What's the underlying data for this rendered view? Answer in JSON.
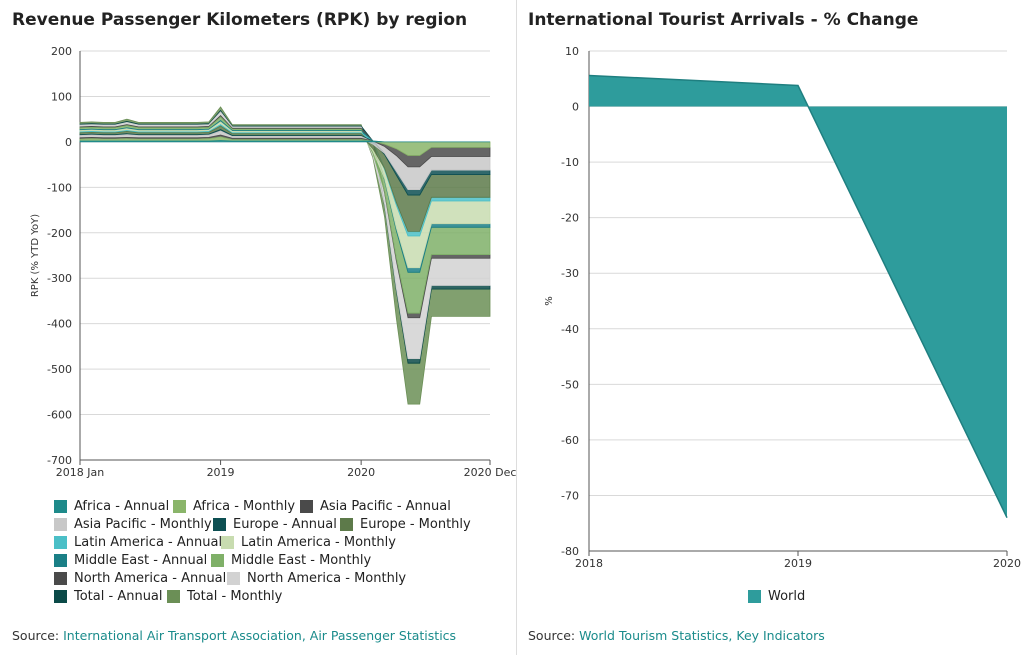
{
  "left": {
    "title": "Revenue Passenger Kilometers (RPK) by region",
    "source_prefix": "Source: ",
    "source_link": "International Air Transport Association, Air Passenger Statistics"
  },
  "right": {
    "title": "International Tourist Arrivals - % Change",
    "source_prefix": "Source: ",
    "source_link": "World Tourism Statistics, Key Indicators"
  },
  "chart_data": [
    {
      "type": "area",
      "title": "Revenue Passenger Kilometers (RPK) by region",
      "ylabel": "RPK (% YTD YoY)",
      "xlabel": "",
      "ylim": [
        -700,
        200
      ],
      "yticks": [
        200,
        100,
        0,
        -100,
        -200,
        -300,
        -400,
        -500,
        -600,
        -700
      ],
      "x_tick_labels": [
        "2018 Jan",
        "2019",
        "2020",
        "2020 Dec"
      ],
      "x_tick_index": [
        0,
        12,
        24,
        35
      ],
      "grid": true,
      "legend_position": "bottom",
      "stacked": true,
      "series": [
        {
          "name": "Africa - Annual",
          "color": "#1e8a8a",
          "values": [
            2,
            2,
            2,
            2,
            2,
            2,
            2,
            2,
            2,
            2,
            2,
            2,
            3,
            2,
            2,
            2,
            2,
            2,
            2,
            2,
            2,
            2,
            2,
            2,
            2,
            2,
            0,
            0,
            0,
            0,
            0,
            0,
            0,
            0,
            0,
            0
          ]
        },
        {
          "name": "Africa - Monthly",
          "color": "#8ab56a",
          "values": [
            4,
            5,
            4,
            4,
            5,
            4,
            4,
            4,
            4,
            4,
            4,
            5,
            8,
            3,
            3,
            3,
            3,
            3,
            3,
            3,
            3,
            3,
            3,
            3,
            3,
            0,
            -5,
            -15,
            -30,
            -30,
            -12,
            -12,
            -12,
            -12,
            -12,
            -12
          ]
        },
        {
          "name": "Asia Pacific - Annual",
          "color": "#4a4a4a",
          "values": [
            3,
            3,
            3,
            3,
            3,
            3,
            3,
            3,
            3,
            3,
            3,
            3,
            4,
            3,
            3,
            3,
            3,
            3,
            3,
            3,
            3,
            3,
            3,
            3,
            3,
            0,
            -5,
            -15,
            -25,
            -25,
            -20,
            -20,
            -20,
            -20,
            -20,
            -20
          ]
        },
        {
          "name": "Asia Pacific - Monthly",
          "color": "#c8c8c8",
          "values": [
            5,
            5,
            5,
            5,
            6,
            5,
            5,
            5,
            5,
            5,
            5,
            5,
            9,
            4,
            4,
            4,
            4,
            4,
            4,
            4,
            4,
            4,
            4,
            4,
            4,
            -5,
            -15,
            -35,
            -50,
            -50,
            -30,
            -30,
            -30,
            -30,
            -30,
            -30
          ]
        },
        {
          "name": "Europe - Annual",
          "color": "#0d4f52",
          "values": [
            2,
            2,
            2,
            2,
            2,
            2,
            2,
            2,
            2,
            2,
            2,
            2,
            3,
            2,
            2,
            2,
            2,
            2,
            2,
            2,
            2,
            2,
            2,
            2,
            2,
            0,
            -3,
            -8,
            -12,
            -12,
            -10,
            -10,
            -10,
            -10,
            -10,
            -10
          ]
        },
        {
          "name": "Europe - Monthly",
          "color": "#5d7a4a",
          "values": [
            4,
            4,
            4,
            4,
            5,
            4,
            4,
            4,
            4,
            4,
            4,
            4,
            8,
            4,
            4,
            4,
            4,
            4,
            4,
            4,
            4,
            4,
            4,
            4,
            4,
            -10,
            -30,
            -60,
            -80,
            -80,
            -50,
            -50,
            -50,
            -50,
            -50,
            -50
          ]
        },
        {
          "name": "Latin America - Annual",
          "color": "#4bbfc7",
          "values": [
            2,
            2,
            2,
            2,
            2,
            2,
            2,
            2,
            2,
            2,
            2,
            2,
            3,
            2,
            2,
            2,
            2,
            2,
            2,
            2,
            2,
            2,
            2,
            2,
            2,
            0,
            -3,
            -6,
            -10,
            -10,
            -8,
            -8,
            -8,
            -8,
            -8,
            -8
          ]
        },
        {
          "name": "Latin America - Monthly",
          "color": "#c8dcb0",
          "values": [
            3,
            3,
            3,
            3,
            4,
            3,
            3,
            3,
            3,
            3,
            3,
            3,
            6,
            3,
            3,
            3,
            3,
            3,
            3,
            3,
            3,
            3,
            3,
            3,
            3,
            -5,
            -20,
            -50,
            -70,
            -70,
            -50,
            -50,
            -50,
            -50,
            -50,
            -50
          ]
        },
        {
          "name": "Middle East - Annual",
          "color": "#1a7f86",
          "values": [
            2,
            2,
            2,
            2,
            2,
            2,
            2,
            2,
            2,
            2,
            2,
            2,
            3,
            2,
            2,
            2,
            2,
            2,
            2,
            2,
            2,
            2,
            2,
            2,
            2,
            0,
            -3,
            -6,
            -10,
            -10,
            -8,
            -8,
            -8,
            -8,
            -8,
            -8
          ]
        },
        {
          "name": "Middle East - Monthly",
          "color": "#7fb068",
          "values": [
            4,
            4,
            4,
            4,
            5,
            4,
            4,
            4,
            4,
            4,
            4,
            4,
            8,
            3,
            3,
            3,
            3,
            3,
            3,
            3,
            3,
            3,
            3,
            3,
            3,
            -5,
            -25,
            -60,
            -90,
            -90,
            -60,
            -60,
            -60,
            -60,
            -60,
            -60
          ]
        },
        {
          "name": "North America - Annual",
          "color": "#4a4a4a",
          "values": [
            2,
            2,
            2,
            2,
            2,
            2,
            2,
            2,
            2,
            2,
            2,
            2,
            3,
            2,
            2,
            2,
            2,
            2,
            2,
            2,
            2,
            2,
            2,
            2,
            2,
            0,
            -3,
            -6,
            -10,
            -10,
            -8,
            -8,
            -8,
            -8,
            -8,
            -8
          ]
        },
        {
          "name": "North America - Monthly",
          "color": "#d2d2d2",
          "values": [
            4,
            4,
            4,
            4,
            5,
            4,
            4,
            4,
            4,
            4,
            4,
            4,
            8,
            3,
            3,
            3,
            3,
            3,
            3,
            3,
            3,
            3,
            3,
            3,
            3,
            -5,
            -25,
            -60,
            -90,
            -90,
            -60,
            -60,
            -60,
            -60,
            -60,
            -60
          ]
        },
        {
          "name": "Total - Annual",
          "color": "#0b4a48",
          "values": [
            2,
            2,
            2,
            2,
            2,
            2,
            2,
            2,
            2,
            2,
            2,
            2,
            3,
            2,
            2,
            2,
            2,
            2,
            2,
            2,
            2,
            2,
            2,
            2,
            2,
            0,
            -3,
            -6,
            -10,
            -10,
            -8,
            -8,
            -8,
            -8,
            -8,
            -8
          ]
        },
        {
          "name": "Total - Monthly",
          "color": "#6b8f56",
          "values": [
            4,
            4,
            4,
            4,
            5,
            4,
            4,
            4,
            4,
            4,
            4,
            4,
            8,
            3,
            3,
            3,
            3,
            3,
            3,
            3,
            3,
            3,
            3,
            3,
            3,
            -5,
            -25,
            -60,
            -90,
            -90,
            -60,
            -60,
            -60,
            -60,
            -60,
            -60
          ]
        }
      ]
    },
    {
      "type": "area",
      "title": "International Tourist Arrivals - % Change",
      "ylabel": "%",
      "xlabel": "",
      "ylim": [
        -80,
        10
      ],
      "yticks": [
        10,
        0,
        -10,
        -20,
        -30,
        -40,
        -50,
        -60,
        -70,
        -80
      ],
      "x": [
        2018,
        2019,
        2020
      ],
      "x_tick_labels": [
        "2018",
        "2019",
        "2020"
      ],
      "grid": true,
      "legend_position": "bottom",
      "series": [
        {
          "name": "World",
          "color": "#2e9c9c",
          "values": [
            5.6,
            3.8,
            -74
          ]
        }
      ]
    }
  ]
}
